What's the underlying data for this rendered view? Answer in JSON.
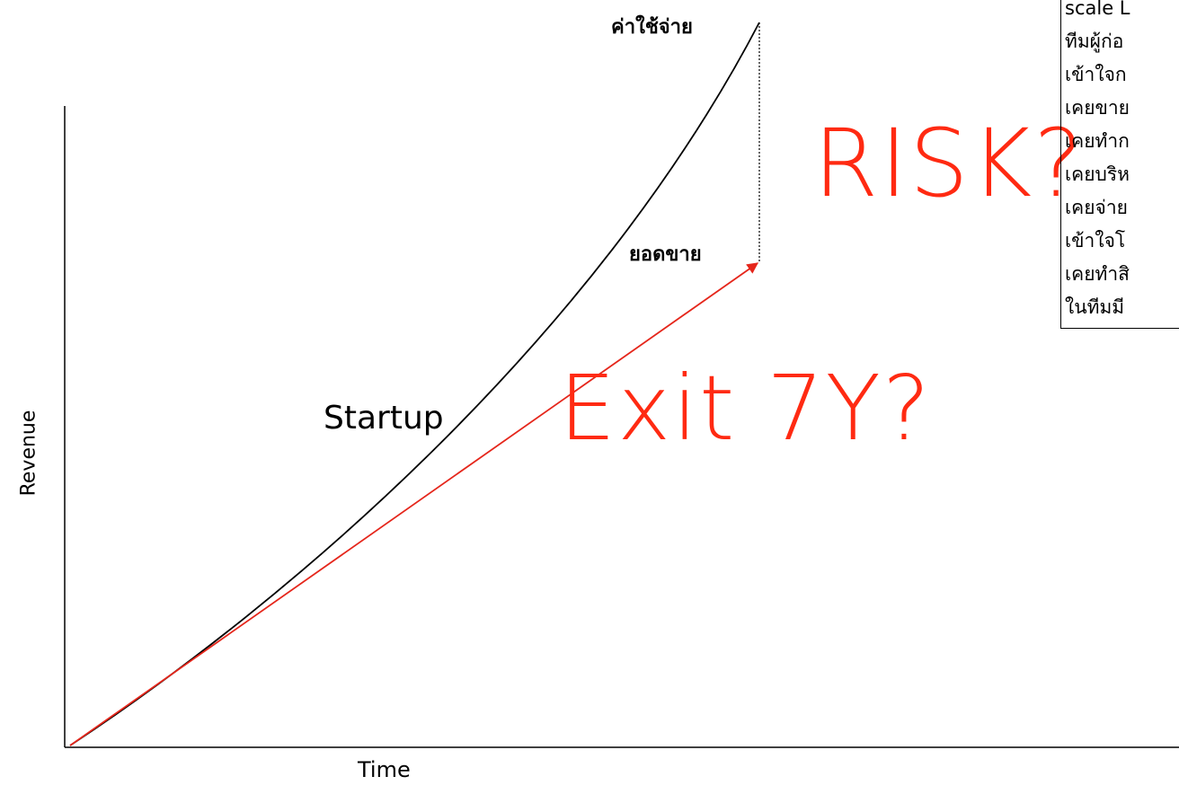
{
  "labels": {
    "cost": "ค่าใช้จ่าย",
    "risk": "RISK?",
    "sales": "ยอดขาย",
    "startup": "Startup",
    "exit": "Exit 7Y?",
    "y_axis": "Revenue",
    "x_axis": "Time"
  },
  "checklist": [
    "scale L",
    "ทีมผู้ก่อ",
    "เข้าใจก",
    "เคยขาย",
    "เคยทำก",
    "เคยบริห",
    "เคยจ่าย",
    "เข้าใจโ",
    "เคยทำสิ",
    "ในทีมมี"
  ]
}
